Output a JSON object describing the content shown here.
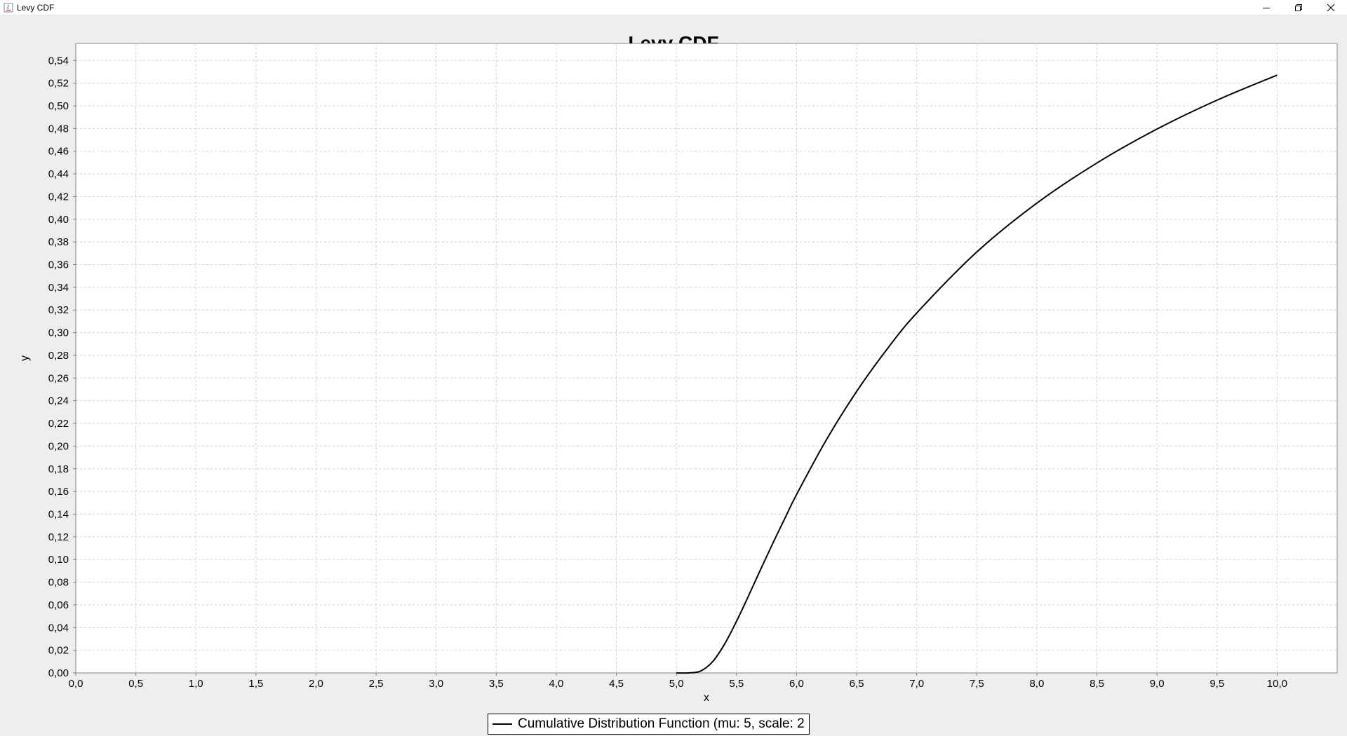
{
  "window": {
    "title": "Levy CDF",
    "controls": {
      "minimize_icon": "minimize-icon",
      "restore_icon": "restore-icon",
      "close_icon": "close-icon"
    }
  },
  "chart_data": {
    "type": "line",
    "title": "Levy CDF",
    "xlabel": "x",
    "ylabel": "y",
    "xlim": [
      0.0,
      10.5
    ],
    "ylim": [
      0.0,
      0.555
    ],
    "grid": true,
    "legend_placement": "bottom-center",
    "x_ticks": [
      "0,0",
      "0,5",
      "1,0",
      "1,5",
      "2,0",
      "2,5",
      "3,0",
      "3,5",
      "4,0",
      "4,5",
      "5,0",
      "5,5",
      "6,0",
      "6,5",
      "7,0",
      "7,5",
      "8,0",
      "8,5",
      "9,0",
      "9,5",
      "10,0"
    ],
    "x_tick_values": [
      0.0,
      0.5,
      1.0,
      1.5,
      2.0,
      2.5,
      3.0,
      3.5,
      4.0,
      4.5,
      5.0,
      5.5,
      6.0,
      6.5,
      7.0,
      7.5,
      8.0,
      8.5,
      9.0,
      9.5,
      10.0
    ],
    "y_ticks": [
      "0,00",
      "0,02",
      "0,04",
      "0,06",
      "0,08",
      "0,10",
      "0,12",
      "0,14",
      "0,16",
      "0,18",
      "0,20",
      "0,22",
      "0,24",
      "0,26",
      "0,28",
      "0,30",
      "0,32",
      "0,34",
      "0,36",
      "0,38",
      "0,40",
      "0,42",
      "0,44",
      "0,46",
      "0,48",
      "0,50",
      "0,52",
      "0,54"
    ],
    "y_tick_values": [
      0.0,
      0.02,
      0.04,
      0.06,
      0.08,
      0.1,
      0.12,
      0.14,
      0.16,
      0.18,
      0.2,
      0.22,
      0.24,
      0.26,
      0.28,
      0.3,
      0.32,
      0.34,
      0.36,
      0.38,
      0.4,
      0.42,
      0.44,
      0.46,
      0.48,
      0.5,
      0.52,
      0.54
    ],
    "series": [
      {
        "name": "Cumulative Distribution Function (mu: 5, scale: 2",
        "color": "#000000",
        "x": [
          5.0,
          5.1,
          5.2,
          5.3,
          5.4,
          5.5,
          5.6,
          5.7,
          5.8,
          5.9,
          6.0,
          6.25,
          6.5,
          6.75,
          7.0,
          7.5,
          8.0,
          8.5,
          9.0,
          9.5,
          10.0
        ],
        "y": [
          0.0,
          0.0,
          0.0016,
          0.0098,
          0.0253,
          0.0455,
          0.0679,
          0.0911,
          0.1138,
          0.1357,
          0.1573,
          0.2059,
          0.2482,
          0.285,
          0.3173,
          0.3711,
          0.4142,
          0.4496,
          0.4795,
          0.505,
          0.5271
        ]
      }
    ]
  }
}
